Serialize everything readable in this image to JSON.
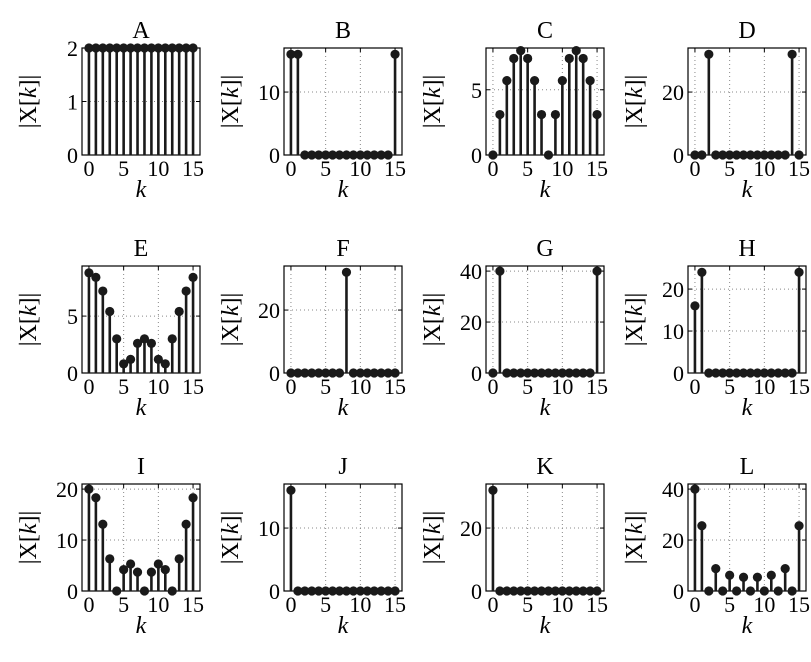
{
  "figure": {
    "background": "#ffffff",
    "stem_color": "#1a1a1a",
    "grid_color": "#888888"
  },
  "chart_data": [
    {
      "type": "stem",
      "title": "A",
      "xlabel": "k",
      "ylabel_prefix": "|X[",
      "ylabel_var": "k",
      "ylabel_suffix": "]|",
      "xticks": [
        "0",
        "5",
        "10",
        "15"
      ],
      "yticks": [
        "0",
        "1",
        "2"
      ],
      "xlim": [
        -1,
        16
      ],
      "ylim": [
        0,
        2
      ],
      "grid": true,
      "x": [
        0,
        1,
        2,
        3,
        4,
        5,
        6,
        7,
        8,
        9,
        10,
        11,
        12,
        13,
        14,
        15
      ],
      "values": [
        2,
        2,
        2,
        2,
        2,
        2,
        2,
        2,
        2,
        2,
        2,
        2,
        2,
        2,
        2,
        2
      ]
    },
    {
      "type": "stem",
      "title": "B",
      "xlabel": "k",
      "ylabel_prefix": "|X[",
      "ylabel_var": "k",
      "ylabel_suffix": "]|",
      "xticks": [
        "0",
        "5",
        "10",
        "15"
      ],
      "yticks": [
        "0",
        "10"
      ],
      "xlim": [
        -1,
        16
      ],
      "ylim": [
        0,
        17
      ],
      "grid": true,
      "x": [
        0,
        1,
        2,
        3,
        4,
        5,
        6,
        7,
        8,
        9,
        10,
        11,
        12,
        13,
        14,
        15
      ],
      "values": [
        16,
        16,
        0,
        0,
        0,
        0,
        0,
        0,
        0,
        0,
        0,
        0,
        0,
        0,
        0,
        16
      ]
    },
    {
      "type": "stem",
      "title": "C",
      "xlabel": "k",
      "ylabel_prefix": "|X[",
      "ylabel_var": "k",
      "ylabel_suffix": "]|",
      "xticks": [
        "0",
        "5",
        "10",
        "15"
      ],
      "yticks": [
        "0",
        "5"
      ],
      "xlim": [
        -1,
        16
      ],
      "ylim": [
        0,
        8.2
      ],
      "grid": true,
      "x": [
        0,
        1,
        2,
        3,
        4,
        5,
        6,
        7,
        8,
        9,
        10,
        11,
        12,
        13,
        14,
        15
      ],
      "values": [
        0,
        3.1,
        5.7,
        7.4,
        8,
        7.4,
        5.7,
        3.1,
        0,
        3.1,
        5.7,
        7.4,
        8,
        7.4,
        5.7,
        3.1
      ]
    },
    {
      "type": "stem",
      "title": "D",
      "xlabel": "k",
      "ylabel_prefix": "|X[",
      "ylabel_var": "k",
      "ylabel_suffix": "]|",
      "xticks": [
        "0",
        "5",
        "10",
        "15"
      ],
      "yticks": [
        "0",
        "20"
      ],
      "xlim": [
        -1,
        16
      ],
      "ylim": [
        0,
        34
      ],
      "grid": true,
      "x": [
        0,
        1,
        2,
        3,
        4,
        5,
        6,
        7,
        8,
        9,
        10,
        11,
        12,
        13,
        14,
        15
      ],
      "values": [
        0,
        0,
        32,
        0,
        0,
        0,
        0,
        0,
        0,
        0,
        0,
        0,
        0,
        0,
        32,
        0
      ]
    },
    {
      "type": "stem",
      "title": "E",
      "xlabel": "k",
      "ylabel_prefix": "|X[",
      "ylabel_var": "k",
      "ylabel_suffix": "]|",
      "xticks": [
        "0",
        "5",
        "10",
        "15"
      ],
      "yticks": [
        "0",
        "5"
      ],
      "xlim": [
        -1,
        16
      ],
      "ylim": [
        0,
        9.4
      ],
      "grid": true,
      "x": [
        0,
        1,
        2,
        3,
        4,
        5,
        6,
        7,
        8,
        9,
        10,
        11,
        12,
        13,
        14,
        15
      ],
      "values": [
        8.8,
        8.4,
        7.2,
        5.4,
        3.0,
        0.8,
        1.2,
        2.6,
        3.0,
        2.6,
        1.2,
        0.8,
        3.0,
        5.4,
        7.2,
        8.4
      ]
    },
    {
      "type": "stem",
      "title": "F",
      "xlabel": "k",
      "ylabel_prefix": "|X[",
      "ylabel_var": "k",
      "ylabel_suffix": "]|",
      "xticks": [
        "0",
        "5",
        "10",
        "15"
      ],
      "yticks": [
        "0",
        "20"
      ],
      "xlim": [
        -1,
        16
      ],
      "ylim": [
        0,
        34
      ],
      "grid": true,
      "x": [
        0,
        1,
        2,
        3,
        4,
        5,
        6,
        7,
        8,
        9,
        10,
        11,
        12,
        13,
        14,
        15
      ],
      "values": [
        0,
        0,
        0,
        0,
        0,
        0,
        0,
        0,
        32,
        0,
        0,
        0,
        0,
        0,
        0,
        0
      ]
    },
    {
      "type": "stem",
      "title": "G",
      "xlabel": "k",
      "ylabel_prefix": "|X[",
      "ylabel_var": "k",
      "ylabel_suffix": "]|",
      "xticks": [
        "0",
        "5",
        "10",
        "15"
      ],
      "yticks": [
        "0",
        "20",
        "40"
      ],
      "xlim": [
        -1,
        16
      ],
      "ylim": [
        0,
        42
      ],
      "grid": true,
      "x": [
        0,
        1,
        2,
        3,
        4,
        5,
        6,
        7,
        8,
        9,
        10,
        11,
        12,
        13,
        14,
        15
      ],
      "values": [
        0,
        40,
        0,
        0,
        0,
        0,
        0,
        0,
        0,
        0,
        0,
        0,
        0,
        0,
        0,
        40
      ]
    },
    {
      "type": "stem",
      "title": "H",
      "xlabel": "k",
      "ylabel_prefix": "|X[",
      "ylabel_var": "k",
      "ylabel_suffix": "]|",
      "xticks": [
        "0",
        "5",
        "10",
        "15"
      ],
      "yticks": [
        "0",
        "10",
        "20"
      ],
      "xlim": [
        -1,
        16
      ],
      "ylim": [
        0,
        25.5
      ],
      "grid": true,
      "x": [
        0,
        1,
        2,
        3,
        4,
        5,
        6,
        7,
        8,
        9,
        10,
        11,
        12,
        13,
        14,
        15
      ],
      "values": [
        16,
        24,
        0,
        0,
        0,
        0,
        0,
        0,
        0,
        0,
        0,
        0,
        0,
        0,
        0,
        24
      ]
    },
    {
      "type": "stem",
      "title": "I",
      "xlabel": "k",
      "ylabel_prefix": "|X[",
      "ylabel_var": "k",
      "ylabel_suffix": "]|",
      "xticks": [
        "0",
        "5",
        "10",
        "15"
      ],
      "yticks": [
        "0",
        "10",
        "20"
      ],
      "xlim": [
        -1,
        16
      ],
      "ylim": [
        0,
        21
      ],
      "grid": true,
      "x": [
        0,
        1,
        2,
        3,
        4,
        5,
        6,
        7,
        8,
        9,
        10,
        11,
        12,
        13,
        14,
        15
      ],
      "values": [
        20,
        18.3,
        13.1,
        6.3,
        0,
        4.2,
        5.3,
        3.7,
        0,
        3.7,
        5.3,
        4.2,
        0,
        6.3,
        13.1,
        18.3
      ]
    },
    {
      "type": "stem",
      "title": "J",
      "xlabel": "k",
      "ylabel_prefix": "|X[",
      "ylabel_var": "k",
      "ylabel_suffix": "]|",
      "xticks": [
        "0",
        "5",
        "10",
        "15"
      ],
      "yticks": [
        "0",
        "10"
      ],
      "xlim": [
        -1,
        16
      ],
      "ylim": [
        0,
        17
      ],
      "grid": true,
      "x": [
        0,
        1,
        2,
        3,
        4,
        5,
        6,
        7,
        8,
        9,
        10,
        11,
        12,
        13,
        14,
        15
      ],
      "values": [
        16,
        0,
        0,
        0,
        0,
        0,
        0,
        0,
        0,
        0,
        0,
        0,
        0,
        0,
        0,
        0
      ]
    },
    {
      "type": "stem",
      "title": "K",
      "xlabel": "k",
      "ylabel_prefix": "|X[",
      "ylabel_var": "k",
      "ylabel_suffix": "]|",
      "xticks": [
        "0",
        "5",
        "10",
        "15"
      ],
      "yticks": [
        "0",
        "20"
      ],
      "xlim": [
        -1,
        16
      ],
      "ylim": [
        0,
        34
      ],
      "grid": true,
      "x": [
        0,
        1,
        2,
        3,
        4,
        5,
        6,
        7,
        8,
        9,
        10,
        11,
        12,
        13,
        14,
        15
      ],
      "values": [
        32,
        0,
        0,
        0,
        0,
        0,
        0,
        0,
        0,
        0,
        0,
        0,
        0,
        0,
        0,
        0
      ]
    },
    {
      "type": "stem",
      "title": "L",
      "xlabel": "k",
      "ylabel_prefix": "|X[",
      "ylabel_var": "k",
      "ylabel_suffix": "]|",
      "xticks": [
        "0",
        "5",
        "10",
        "15"
      ],
      "yticks": [
        "0",
        "20",
        "40"
      ],
      "xlim": [
        -1,
        16
      ],
      "ylim": [
        0,
        42
      ],
      "grid": true,
      "x": [
        0,
        1,
        2,
        3,
        4,
        5,
        6,
        7,
        8,
        9,
        10,
        11,
        12,
        13,
        14,
        15
      ],
      "values": [
        40,
        25.6,
        0,
        8.8,
        0,
        6.2,
        0,
        5.4,
        0,
        5.4,
        0,
        6.2,
        0,
        8.8,
        0,
        25.6
      ]
    }
  ]
}
